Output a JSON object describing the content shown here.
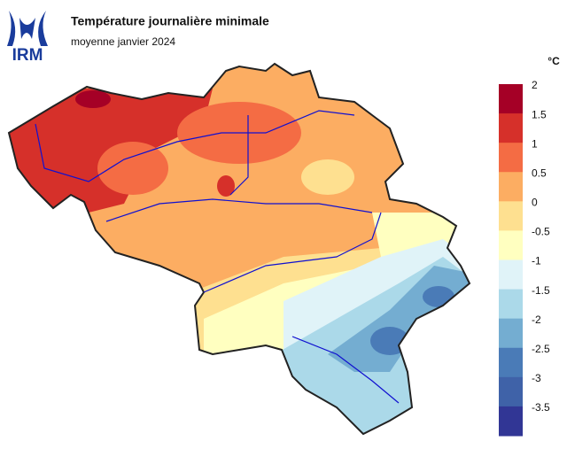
{
  "logo": "IRM",
  "title": "Température journalière minimale",
  "subtitle": "moyenne janvier 2024",
  "legend": {
    "unit": "°C",
    "ticks": [
      2,
      1.5,
      1,
      0.5,
      0,
      -0.5,
      -1,
      -1.5,
      -2,
      -2.5,
      -3,
      -3.5
    ],
    "colors": [
      "#a50026",
      "#d6302a",
      "#f46c44",
      "#fcad62",
      "#fee090",
      "#ffffc0",
      "#e0f3f8",
      "#abd9e9",
      "#74add1",
      "#4a7bb7",
      "#3f62a8",
      "#313695"
    ]
  }
}
